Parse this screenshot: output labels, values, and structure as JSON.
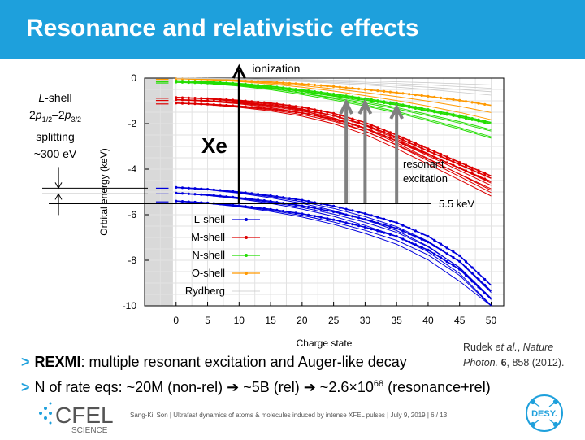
{
  "slide": {
    "title": "Resonance and relativistic effects",
    "sidebar_lines": [
      "L-shell",
      "2p1/2–2p3/2",
      "splitting",
      "~300 eV"
    ],
    "bullets": [
      {
        "prefix": "REXMI",
        "text": ": multiple resonant excitation and Auger-like decay"
      },
      {
        "text": "N of rate eqs: ~20M (non-rel) ➔ ~5B (rel) ➔ ~2.6×10",
        "sup": "68",
        "suffix": " (resonance+rel)"
      }
    ],
    "citation_line1": "Rudek et al., Nature",
    "citation_line2": "Photon. 6, 858 (2012).",
    "footer": "Sang-Kil Son  |  Ultrafast dynamics of atoms & molecules induced by intense XFEL pulses  |  July 9, 2019  |  6  / 13",
    "logo_left_main": "CFEL",
    "logo_left_sub": "SCIENCE",
    "logo_right": "DESY."
  },
  "chart_data": {
    "type": "line",
    "xlabel": "Charge state",
    "ylabel": "Orbital energy (keV)",
    "xlim": [
      -5,
      52
    ],
    "ylim": [
      -10,
      0
    ],
    "xticks": [
      0,
      5,
      10,
      15,
      20,
      25,
      30,
      35,
      40,
      45,
      50
    ],
    "yticks": [
      0,
      -2,
      -4,
      -6,
      -8,
      -10
    ],
    "grid": true,
    "legend_position": "bottom-left",
    "element_label": "Xe",
    "annotations": {
      "ionization": "ionization",
      "resonant": [
        "resonant",
        "excitation"
      ],
      "photon_energy": "5.5 keV",
      "photon_energy_value": -5.5
    },
    "resonant_arrows_x": [
      27,
      30,
      35
    ],
    "ionization_arrow_x": 10,
    "series": [
      {
        "name": "L-shell",
        "color": "#0000dd",
        "x": [
          0,
          5,
          10,
          15,
          20,
          25,
          30,
          35,
          40,
          45,
          50
        ],
        "levels": [
          [
            -4.8,
            -4.88,
            -5.0,
            -5.16,
            -5.36,
            -5.62,
            -5.95,
            -6.35,
            -6.95,
            -7.8,
            -9.1
          ],
          [
            -5.05,
            -5.13,
            -5.25,
            -5.41,
            -5.61,
            -5.87,
            -6.2,
            -6.6,
            -7.2,
            -8.05,
            -9.35
          ],
          [
            -5.4,
            -5.48,
            -5.6,
            -5.76,
            -5.96,
            -6.22,
            -6.55,
            -6.95,
            -7.55,
            -8.4,
            -9.7
          ]
        ]
      },
      {
        "name": "M-shell",
        "color": "#dd0000",
        "x": [
          0,
          5,
          10,
          15,
          20,
          25,
          30,
          35,
          40,
          45,
          50
        ],
        "levels": [
          [
            -0.85,
            -0.9,
            -0.98,
            -1.1,
            -1.28,
            -1.55,
            -1.95,
            -2.5,
            -3.1,
            -3.7,
            -4.3
          ],
          [
            -0.95,
            -1.0,
            -1.08,
            -1.2,
            -1.38,
            -1.65,
            -2.05,
            -2.6,
            -3.2,
            -3.8,
            -4.4
          ],
          [
            -1.1,
            -1.15,
            -1.23,
            -1.35,
            -1.53,
            -1.8,
            -2.2,
            -2.75,
            -3.35,
            -3.95,
            -4.55
          ]
        ]
      },
      {
        "name": "N-shell",
        "color": "#22dd00",
        "x": [
          0,
          5,
          10,
          15,
          20,
          25,
          30,
          35,
          40,
          45,
          50
        ],
        "levels": [
          [
            -0.12,
            -0.16,
            -0.24,
            -0.36,
            -0.52,
            -0.7,
            -0.9,
            -1.12,
            -1.38,
            -1.65,
            -1.95
          ],
          [
            -0.18,
            -0.22,
            -0.3,
            -0.42,
            -0.58,
            -0.76,
            -0.96,
            -1.18,
            -1.44,
            -1.71,
            -2.01
          ]
        ]
      },
      {
        "name": "O-shell",
        "color": "#ff9900",
        "x": [
          0,
          5,
          10,
          15,
          20,
          25,
          30,
          35,
          40,
          45,
          50
        ],
        "levels": [
          [
            -0.02,
            -0.05,
            -0.1,
            -0.17,
            -0.26,
            -0.37,
            -0.5,
            -0.64,
            -0.8,
            -0.98,
            -1.2
          ]
        ]
      },
      {
        "name": "Rydberg",
        "color": "#c8c8c8",
        "x": [
          0,
          10,
          20,
          30,
          40,
          50
        ],
        "levels": [
          [
            0,
            -0.02,
            -0.06,
            -0.12,
            -0.2,
            -0.3
          ],
          [
            0,
            -0.03,
            -0.09,
            -0.18,
            -0.3,
            -0.45
          ],
          [
            0,
            -0.04,
            -0.12,
            -0.24,
            -0.4,
            -0.6
          ],
          [
            0,
            -0.05,
            -0.15,
            -0.3,
            -0.5,
            -0.75
          ]
        ]
      }
    ]
  }
}
